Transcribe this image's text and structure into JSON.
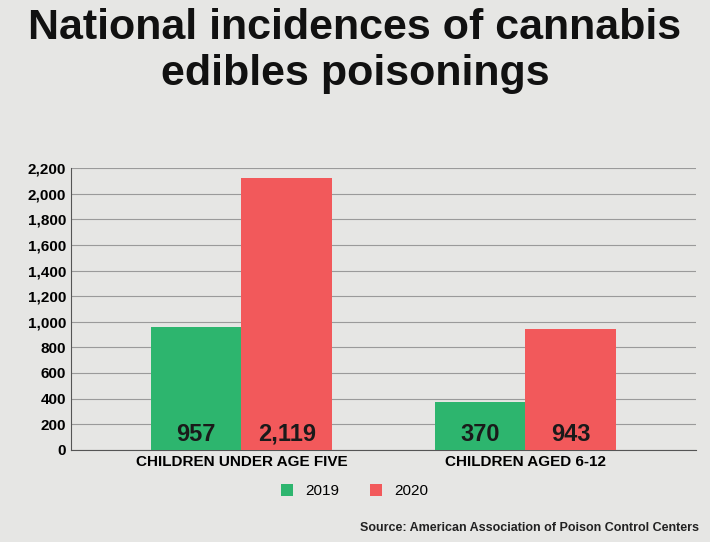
{
  "chart_data": {
    "type": "bar",
    "title": "National incidences of cannabis edibles poisonings",
    "categories": [
      "CHILDREN UNDER AGE FIVE",
      "CHILDREN AGED 6-12"
    ],
    "series": [
      {
        "name": "2019",
        "color": "#2db56e",
        "values": [
          957,
          370
        ],
        "value_labels": [
          "957",
          "370"
        ]
      },
      {
        "name": "2020",
        "color": "#f2595b",
        "values": [
          2119,
          943
        ],
        "value_labels": [
          "2,119",
          "943"
        ]
      }
    ],
    "ylim": [
      0,
      2200
    ],
    "yticks": [
      0,
      200,
      400,
      600,
      800,
      {
        "value": 1000,
        "label": "1,000"
      },
      {
        "value": 1200,
        "label": "1,200"
      },
      {
        "value": 1400,
        "label": "1,400"
      },
      {
        "value": 1600,
        "label": "1,600"
      },
      {
        "value": 1800,
        "label": "1,800"
      },
      {
        "value": 2000,
        "label": "2,000"
      },
      {
        "value": 2200,
        "label": "2,200"
      }
    ],
    "grid": true,
    "data_labels": true,
    "legend": "lower center",
    "source": "Source: American Association of Poison Control Centers"
  }
}
